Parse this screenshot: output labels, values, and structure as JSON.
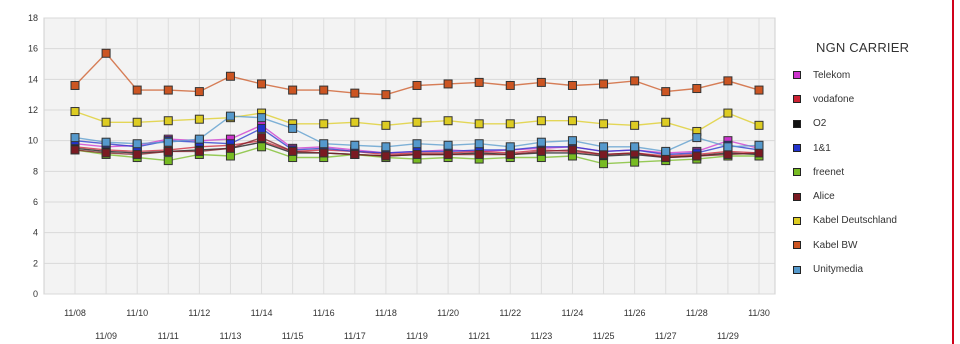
{
  "chart_data": {
    "type": "line",
    "title": "",
    "xlabel": "",
    "ylabel": "",
    "ylim": [
      0,
      18
    ],
    "yticks": [
      0,
      2,
      4,
      6,
      8,
      10,
      12,
      14,
      16,
      18
    ],
    "grid": true,
    "legend_position": "right",
    "legend_title": "NGN CARRIER",
    "x": [
      "11/08",
      "11/09",
      "11/10",
      "11/11",
      "11/12",
      "11/13",
      "11/14",
      "11/15",
      "11/16",
      "11/17",
      "11/18",
      "11/19",
      "11/20",
      "11/21",
      "11/22",
      "11/23",
      "11/24",
      "11/25",
      "11/26",
      "11/27",
      "11/28",
      "11/29",
      "11/30"
    ],
    "series": [
      {
        "name": "Telekom",
        "color": "#cc33cc",
        "values": [
          9.8,
          9.6,
          9.7,
          10.1,
          10.0,
          10.1,
          11.0,
          9.5,
          9.6,
          9.4,
          9.2,
          9.3,
          9.4,
          9.3,
          9.4,
          9.5,
          9.6,
          9.3,
          9.4,
          9.2,
          9.3,
          10.0,
          9.5
        ]
      },
      {
        "name": "vodafone",
        "color": "#cc2233",
        "values": [
          9.6,
          9.4,
          9.3,
          9.4,
          9.6,
          9.7,
          10.0,
          9.3,
          9.4,
          9.3,
          9.1,
          9.2,
          9.2,
          9.3,
          9.2,
          9.4,
          9.3,
          9.1,
          9.2,
          9.0,
          9.1,
          9.3,
          9.2
        ]
      },
      {
        "name": "O2",
        "color": "#111111",
        "values": [
          9.5,
          9.3,
          9.2,
          9.3,
          9.4,
          9.5,
          9.9,
          9.2,
          9.2,
          9.1,
          9.0,
          9.1,
          9.1,
          9.2,
          9.1,
          9.2,
          9.2,
          9.0,
          9.1,
          8.9,
          9.0,
          9.2,
          9.1
        ]
      },
      {
        "name": "1&1",
        "color": "#2233cc",
        "values": [
          10.0,
          9.8,
          9.6,
          10.0,
          9.9,
          9.8,
          10.8,
          9.4,
          9.5,
          9.3,
          9.2,
          9.3,
          9.3,
          9.4,
          9.4,
          9.6,
          9.6,
          9.3,
          9.4,
          9.1,
          9.2,
          9.7,
          9.4
        ]
      },
      {
        "name": "freenet",
        "color": "#77bb22",
        "values": [
          9.4,
          9.1,
          8.9,
          8.7,
          9.1,
          9.0,
          9.6,
          8.9,
          8.9,
          9.1,
          8.9,
          8.8,
          8.9,
          8.8,
          8.9,
          8.9,
          9.0,
          8.5,
          8.6,
          8.7,
          8.8,
          9.0,
          9.0
        ]
      },
      {
        "name": "Alice",
        "color": "#7a1a22",
        "values": [
          9.4,
          9.2,
          9.1,
          9.3,
          9.3,
          9.5,
          10.2,
          9.3,
          9.2,
          9.1,
          9.0,
          9.1,
          9.1,
          9.1,
          9.1,
          9.3,
          9.4,
          9.1,
          9.2,
          8.9,
          9.0,
          9.1,
          9.2
        ]
      },
      {
        "name": "Kabel Deutschland",
        "color": "#ddcc22",
        "values": [
          11.9,
          11.2,
          11.2,
          11.3,
          11.4,
          11.5,
          11.8,
          11.1,
          11.1,
          11.2,
          11.0,
          11.2,
          11.3,
          11.1,
          11.1,
          11.3,
          11.3,
          11.1,
          11.0,
          11.2,
          10.6,
          11.8,
          11.0
        ]
      },
      {
        "name": "Kabel BW",
        "color": "#cc5522",
        "values": [
          13.6,
          15.7,
          13.3,
          13.3,
          13.2,
          14.2,
          13.7,
          13.3,
          13.3,
          13.1,
          13.0,
          13.6,
          13.7,
          13.8,
          13.6,
          13.8,
          13.6,
          13.7,
          13.9,
          13.2,
          13.4,
          13.9,
          13.3
        ]
      },
      {
        "name": "Unitymedia",
        "color": "#5599cc",
        "values": [
          10.2,
          9.9,
          9.8,
          9.9,
          10.1,
          11.6,
          11.5,
          10.8,
          9.8,
          9.7,
          9.6,
          9.8,
          9.7,
          9.8,
          9.6,
          9.9,
          10.0,
          9.6,
          9.6,
          9.3,
          10.2,
          9.6,
          9.7
        ]
      }
    ]
  }
}
